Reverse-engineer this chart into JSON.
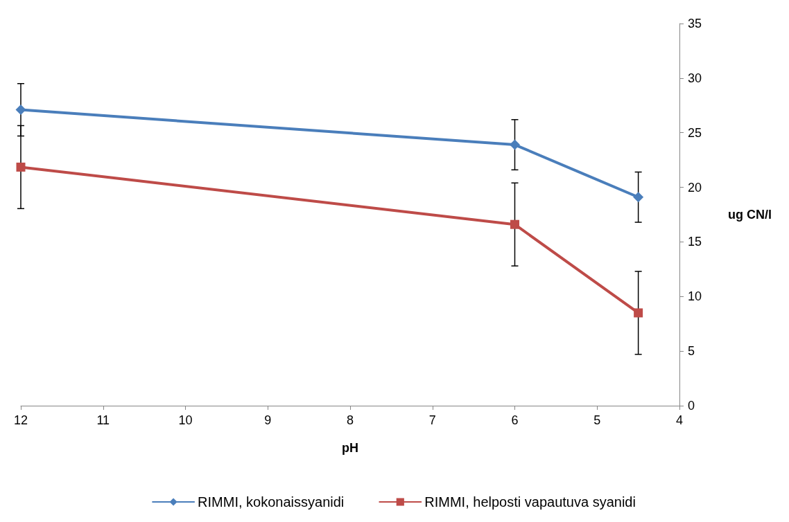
{
  "chart_data": {
    "type": "line",
    "xlabel": "pH",
    "ylabel": "ug CN/l",
    "x": [
      12,
      6,
      4.5
    ],
    "series": [
      {
        "name": "RIMMI, kokonaissyanidi",
        "color": "#4a7ebb",
        "marker": "diamond",
        "values": [
          27.1,
          23.9,
          19.1
        ],
        "errors": [
          2.4,
          2.3,
          2.3
        ]
      },
      {
        "name": "RIMMI, helposti vapautuva syanidi",
        "color": "#be4b48",
        "marker": "square",
        "values": [
          21.85,
          16.6,
          8.5
        ],
        "errors": [
          3.8,
          3.8,
          3.8
        ]
      }
    ],
    "xlim": [
      12,
      4
    ],
    "xticks": [
      12,
      11,
      10,
      9,
      8,
      7,
      6,
      5,
      4
    ],
    "ylim": [
      0,
      35
    ],
    "yticks": [
      0,
      5,
      10,
      15,
      20,
      25,
      30,
      35
    ],
    "grid": false,
    "legend": "bottom"
  }
}
